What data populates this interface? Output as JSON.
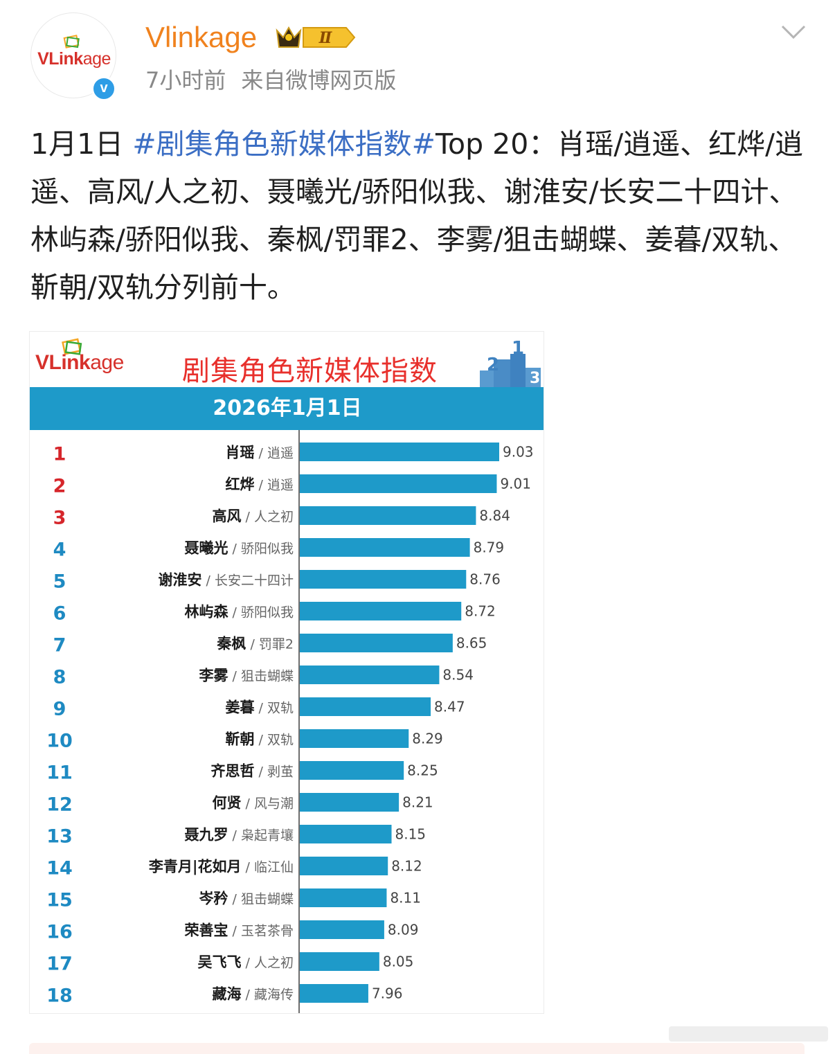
{
  "post": {
    "username": "Vlinkage",
    "vip_level": "Ⅱ",
    "verified_mark": "v",
    "time": "7小时前",
    "source": "来自微博网页版",
    "text_prefix": "1月1日 ",
    "hashtag": "#剧集角色新媒体指数#",
    "text_body": "Top 20：肖瑶/逍遥、红烨/逍遥、高风/人之初、聂曦光/骄阳似我、谢淮安/长安二十四计、林屿森/骄阳似我、秦枫/罚罪2、李雾/狙击蝴蝶、姜暮/双轨、靳朝/双轨分列前十。"
  },
  "avatar": {
    "logo_v": "V",
    "logo_link": "Link",
    "logo_age": "age"
  },
  "card": {
    "logo_v": "VL",
    "logo_link": "ink",
    "logo_age": "age",
    "title": "剧集角色新媒体指数",
    "date": "2026年1月1日"
  },
  "colors": {
    "username": "#f0821e",
    "hashtag": "#3b6ec4",
    "bar": "#1e9ac9",
    "rank_top3": "#d6262b",
    "rank_other": "#1e8ac2",
    "card_title": "#e8302c"
  },
  "icons": {
    "avatar_deco": "logo-frame-icon",
    "verify": "verified-badge-icon",
    "vip": "crown-vip-icon",
    "menu": "chevron-down-icon",
    "podium": "podium-icon"
  },
  "chart_data": {
    "type": "bar",
    "orientation": "horizontal",
    "title": "剧集角色新媒体指数",
    "subtitle": "2026年1月1日",
    "xlim": [
      7.4,
      9.1
    ],
    "grid": false,
    "categories": [
      {
        "rank": "1",
        "role": "肖瑶",
        "drama": "逍遥"
      },
      {
        "rank": "2",
        "role": "红烨",
        "drama": "逍遥"
      },
      {
        "rank": "3",
        "role": "高风",
        "drama": "人之初"
      },
      {
        "rank": "4",
        "role": "聂曦光",
        "drama": "骄阳似我"
      },
      {
        "rank": "5",
        "role": "谢淮安",
        "drama": "长安二十四计"
      },
      {
        "rank": "6",
        "role": "林屿森",
        "drama": "骄阳似我"
      },
      {
        "rank": "7",
        "role": "秦枫",
        "drama": "罚罪2"
      },
      {
        "rank": "8",
        "role": "李雾",
        "drama": "狙击蝴蝶"
      },
      {
        "rank": "9",
        "role": "姜暮",
        "drama": "双轨"
      },
      {
        "rank": "10",
        "role": "靳朝",
        "drama": "双轨"
      },
      {
        "rank": "11",
        "role": "齐思哲",
        "drama": "剥茧"
      },
      {
        "rank": "12",
        "role": "何贤",
        "drama": "风与潮"
      },
      {
        "rank": "13",
        "role": "聂九罗",
        "drama": "枭起青壤"
      },
      {
        "rank": "14",
        "role": "李青月|花如月",
        "drama": "临江仙"
      },
      {
        "rank": "15",
        "role": "岑矜",
        "drama": "狙击蝴蝶"
      },
      {
        "rank": "16",
        "role": "荣善宝",
        "drama": "玉茗茶骨"
      },
      {
        "rank": "17",
        "role": "吴飞飞",
        "drama": "人之初"
      },
      {
        "rank": "18",
        "role": "藏海",
        "drama": "藏海传"
      }
    ],
    "values": [
      9.03,
      9.01,
      8.84,
      8.79,
      8.76,
      8.72,
      8.65,
      8.54,
      8.47,
      8.29,
      8.25,
      8.21,
      8.15,
      8.12,
      8.11,
      8.09,
      8.05,
      7.96
    ]
  }
}
